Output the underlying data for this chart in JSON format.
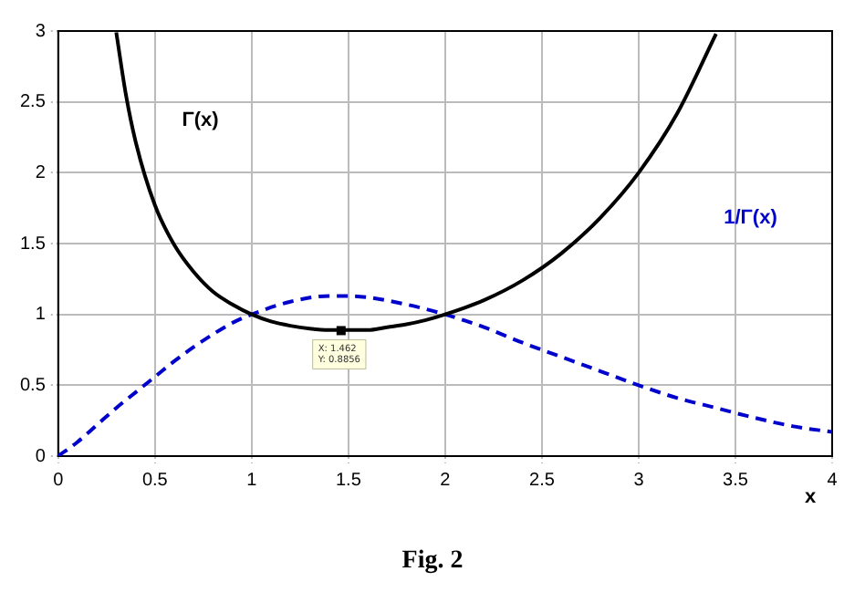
{
  "chart_data": {
    "type": "line",
    "xlabel": "x",
    "xlim": [
      0,
      4
    ],
    "ylim": [
      0,
      3
    ],
    "xticks": [
      0,
      0.5,
      1,
      1.5,
      2,
      2.5,
      3,
      3.5,
      4
    ],
    "yticks": [
      0,
      0.5,
      1,
      1.5,
      2,
      2.5,
      3
    ],
    "grid": true,
    "legend": false,
    "marker": "none",
    "series": [
      {
        "name": "Γ(x)",
        "color": "#000000",
        "line_style": "solid",
        "x": [
          0.3,
          0.35,
          0.4,
          0.5,
          0.6,
          0.7,
          0.8,
          0.9,
          1,
          1.1,
          1.2,
          1.3,
          1.4,
          1.5,
          1.6,
          1.7,
          1.8,
          1.9,
          2,
          2.2,
          2.4,
          2.6,
          2.8,
          3,
          3.2,
          3.4
        ],
        "values": [
          2.99,
          2.55,
          2.22,
          1.77,
          1.49,
          1.3,
          1.16,
          1.07,
          1,
          0.95,
          0.92,
          0.9,
          0.89,
          0.89,
          0.89,
          0.91,
          0.93,
          0.96,
          1,
          1.1,
          1.24,
          1.43,
          1.68,
          2,
          2.42,
          2.98
        ]
      },
      {
        "name": "1/Γ(x)",
        "color": "#0000cc",
        "line_style": "dashed",
        "x": [
          0,
          0.1,
          0.2,
          0.3,
          0.4,
          0.5,
          0.6,
          0.7,
          0.8,
          0.9,
          1,
          1.2,
          1.4,
          1.5,
          1.6,
          1.8,
          2,
          2.2,
          2.4,
          2.6,
          2.8,
          3,
          3.2,
          3.4,
          3.6,
          3.8,
          4
        ],
        "values": [
          0,
          0.1,
          0.22,
          0.34,
          0.45,
          0.56,
          0.67,
          0.77,
          0.86,
          0.94,
          1,
          1.09,
          1.13,
          1.13,
          1.12,
          1.07,
          1,
          0.91,
          0.8,
          0.7,
          0.6,
          0.5,
          0.41,
          0.34,
          0.27,
          0.21,
          0.17
        ]
      }
    ],
    "annotations": [
      {
        "text": "X: 1.462\nY: 0.8856",
        "x": 1.462,
        "y": 0.8856
      },
      "Fig. 2"
    ]
  }
}
